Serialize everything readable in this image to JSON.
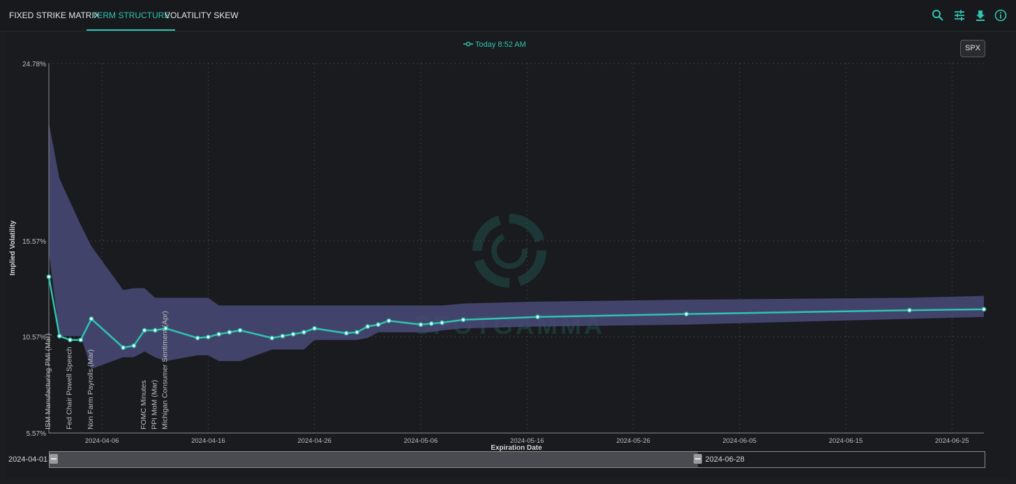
{
  "tabs": [
    {
      "label": "FIXED STRIKE MATRIX",
      "active": false
    },
    {
      "label": "TERM STRUCTURE",
      "active": true
    },
    {
      "label": "VOLATILITY SKEW",
      "active": false
    }
  ],
  "toolbar_icons": [
    "search-icon",
    "sliders-icon",
    "download-icon",
    "info-icon"
  ],
  "symbol_button": "SPX",
  "watermark": "SPOTGAMMA",
  "colors": {
    "accent": "#2ec4b0",
    "band": "#4a4a78",
    "background": "#1c1d21"
  },
  "chart_data": {
    "type": "line",
    "legend": "Today 8:52 AM",
    "xlabel": "Expiration Date",
    "ylabel": "Implied Volatility",
    "ylim": [
      5.57,
      24.78
    ],
    "xlim": [
      "2024-04-01",
      "2024-06-28"
    ],
    "y_ticks": [
      "24.78%",
      "15.57%",
      "10.57%",
      "5.57%"
    ],
    "x_ticks": [
      "2024-04-06",
      "2024-04-16",
      "2024-04-26",
      "2024-05-06",
      "2024-05-16",
      "2024-05-26",
      "2024-06-05",
      "2024-06-15",
      "2024-06-25"
    ],
    "grid": true,
    "series": [
      {
        "name": "Today 8:52 AM",
        "x": [
          "2024-04-01",
          "2024-04-02",
          "2024-04-03",
          "2024-04-04",
          "2024-04-05",
          "2024-04-08",
          "2024-04-09",
          "2024-04-10",
          "2024-04-11",
          "2024-04-12",
          "2024-04-15",
          "2024-04-16",
          "2024-04-17",
          "2024-04-18",
          "2024-04-19",
          "2024-04-22",
          "2024-04-23",
          "2024-04-24",
          "2024-04-25",
          "2024-04-26",
          "2024-04-29",
          "2024-04-30",
          "2024-05-01",
          "2024-05-02",
          "2024-05-03",
          "2024-05-06",
          "2024-05-07",
          "2024-05-08",
          "2024-05-10",
          "2024-05-17",
          "2024-05-31",
          "2024-06-21",
          "2024-06-28"
        ],
        "values": [
          13.7,
          10.6,
          10.4,
          10.4,
          11.5,
          10.0,
          10.1,
          10.9,
          10.9,
          11.0,
          10.5,
          10.55,
          10.7,
          10.8,
          10.9,
          10.5,
          10.6,
          10.7,
          10.8,
          11.0,
          10.75,
          10.8,
          11.1,
          11.2,
          11.4,
          11.2,
          11.25,
          11.3,
          11.45,
          11.6,
          11.75,
          11.95,
          12.0
        ]
      }
    ],
    "band_upper": [
      21.7,
      18.8,
      17.6,
      16.4,
      15.3,
      13.0,
      13.1,
      13.1,
      12.6,
      12.6,
      12.6,
      12.6,
      12.2,
      12.2,
      12.2,
      12.2,
      12.2,
      12.2,
      12.2,
      12.2,
      12.2,
      12.2,
      12.2,
      12.2,
      12.2,
      12.2,
      12.2,
      12.2,
      12.3,
      12.4,
      12.5,
      12.6,
      12.7
    ],
    "band_lower": [
      15.0,
      10.6,
      10.6,
      10.6,
      8.9,
      9.5,
      9.5,
      9.8,
      9.5,
      9.3,
      9.6,
      9.6,
      9.3,
      9.3,
      9.3,
      9.9,
      9.9,
      9.9,
      9.9,
      10.4,
      10.4,
      10.4,
      10.5,
      10.8,
      10.8,
      10.8,
      10.8,
      10.9,
      11.0,
      11.1,
      11.2,
      11.5,
      11.6
    ],
    "events": [
      {
        "date": "2024-04-01",
        "label": "ISM Manufacturing PMI (Mar)"
      },
      {
        "date": "2024-04-03",
        "label": "Fed Chair Powell Speech"
      },
      {
        "date": "2024-04-05",
        "label": "Non Farm Payrolls (Mar)"
      },
      {
        "date": "2024-04-10",
        "label": "FOMC Minutes"
      },
      {
        "date": "2024-04-11",
        "label": "PPI MoM (Mar)"
      },
      {
        "date": "2024-04-12",
        "label": "Michigan Consumer Sentiment (Apr)"
      }
    ]
  },
  "range_slider": {
    "start": "2024-04-01",
    "end": "2024-06-28",
    "end_fraction": 0.693
  }
}
